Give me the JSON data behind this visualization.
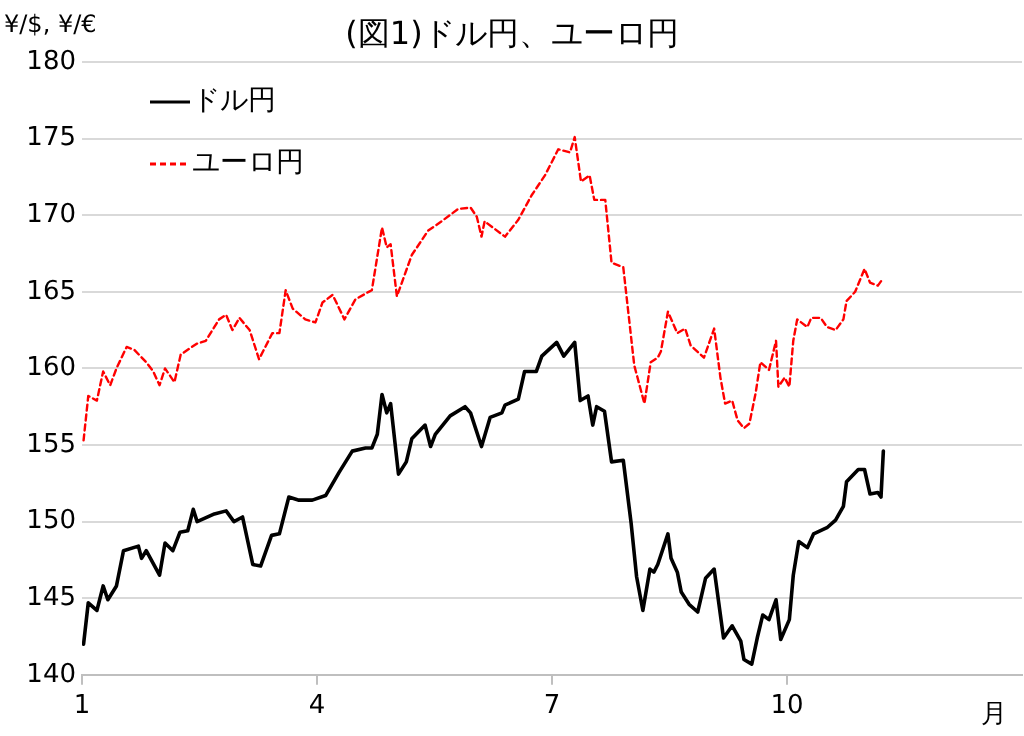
{
  "chart_data": {
    "type": "line",
    "title": "(図1)ドル円、ユーロ円",
    "ylabel": "¥/$, ¥/€",
    "xlabel": "月",
    "xlim": [
      1,
      13
    ],
    "xticks": [
      1,
      4,
      7,
      10
    ],
    "ylim": [
      140,
      180
    ],
    "yticks": [
      140,
      145,
      150,
      155,
      160,
      165,
      170,
      175,
      180
    ],
    "grid": "y",
    "legend": "top left",
    "marker": "none",
    "series": [
      {
        "name": "ドル円",
        "color": "#000000",
        "line_style": "solid",
        "x": [
          1.02,
          1.08,
          1.19,
          1.27,
          1.33,
          1.44,
          1.53,
          1.72,
          1.76,
          1.82,
          1.99,
          2.06,
          2.16,
          2.25,
          2.35,
          2.42,
          2.47,
          2.69,
          2.84,
          2.94,
          3.05,
          3.18,
          3.28,
          3.42,
          3.52,
          3.64,
          3.77,
          3.94,
          4.11,
          4.28,
          4.45,
          4.62,
          4.7,
          4.77,
          4.83,
          4.89,
          4.94,
          5.04,
          5.14,
          5.21,
          5.38,
          5.45,
          5.51,
          5.7,
          5.89,
          5.96,
          6.1,
          6.21,
          6.36,
          6.4,
          6.57,
          6.65,
          6.8,
          6.87,
          7.06,
          7.15,
          7.29,
          7.36,
          7.46,
          7.52,
          7.57,
          7.67,
          7.76,
          7.91,
          8.01,
          8.08,
          8.16,
          8.25,
          8.3,
          8.35,
          8.48,
          8.52,
          8.6,
          8.65,
          8.75,
          8.86,
          8.96,
          9.07,
          9.19,
          9.3,
          9.41,
          9.45,
          9.55,
          9.62,
          9.69,
          9.77,
          9.86,
          9.92,
          10.03,
          10.08,
          10.15,
          10.26,
          10.34,
          10.51,
          10.62,
          10.72,
          10.76,
          10.91,
          10.99,
          11.06,
          11.16,
          11.2,
          11.23
        ],
        "values": [
          142.0,
          144.7,
          144.2,
          145.8,
          144.9,
          145.8,
          148.1,
          148.4,
          147.6,
          148.1,
          146.5,
          148.6,
          148.1,
          149.3,
          149.4,
          150.8,
          150.0,
          150.5,
          150.7,
          150.0,
          150.3,
          147.2,
          147.1,
          149.1,
          149.2,
          151.6,
          151.4,
          151.4,
          151.7,
          153.2,
          154.6,
          154.8,
          154.8,
          155.7,
          158.3,
          157.1,
          157.7,
          153.1,
          153.9,
          155.4,
          156.3,
          154.9,
          155.7,
          156.9,
          157.5,
          157.1,
          154.9,
          156.8,
          157.1,
          157.6,
          158.0,
          159.8,
          159.8,
          160.8,
          161.7,
          160.8,
          161.7,
          157.9,
          158.2,
          156.3,
          157.5,
          157.2,
          153.9,
          154.0,
          149.9,
          146.4,
          144.2,
          146.9,
          146.7,
          147.2,
          149.2,
          147.6,
          146.7,
          145.4,
          144.6,
          144.1,
          146.3,
          146.9,
          142.4,
          143.2,
          142.2,
          141.0,
          140.7,
          142.4,
          143.9,
          143.6,
          144.9,
          142.3,
          143.6,
          146.5,
          148.7,
          148.3,
          149.2,
          149.6,
          150.1,
          151.0,
          152.6,
          153.4,
          153.4,
          151.8,
          151.9,
          151.6,
          154.6
        ]
      },
      {
        "name": "ユーロ円",
        "color": "#ff0000",
        "line_style": "dashed",
        "x": [
          1.02,
          1.08,
          1.19,
          1.27,
          1.36,
          1.44,
          1.57,
          1.67,
          1.82,
          1.91,
          1.99,
          2.06,
          2.18,
          2.26,
          2.46,
          2.58,
          2.75,
          2.84,
          2.92,
          3.01,
          3.14,
          3.26,
          3.43,
          3.52,
          3.6,
          3.69,
          3.85,
          3.98,
          4.07,
          4.2,
          4.35,
          4.49,
          4.66,
          4.7,
          4.83,
          4.89,
          4.94,
          5.02,
          5.21,
          5.42,
          5.59,
          5.8,
          5.96,
          6.04,
          6.1,
          6.14,
          6.4,
          6.57,
          6.74,
          6.91,
          7.08,
          7.23,
          7.29,
          7.37,
          7.48,
          7.54,
          7.68,
          7.76,
          7.91,
          8.05,
          8.18,
          8.26,
          8.35,
          8.39,
          8.48,
          8.6,
          8.7,
          8.77,
          8.94,
          9.07,
          9.15,
          9.21,
          9.3,
          9.37,
          9.45,
          9.52,
          9.6,
          9.66,
          9.77,
          9.86,
          9.89,
          9.97,
          10.03,
          10.08,
          10.13,
          10.26,
          10.31,
          10.43,
          10.51,
          10.62,
          10.72,
          10.76,
          10.87,
          10.99,
          11.06,
          11.16,
          11.23
        ],
        "values": [
          155.3,
          158.2,
          157.9,
          159.8,
          158.9,
          160.0,
          161.4,
          161.2,
          160.4,
          159.8,
          158.9,
          160.0,
          159.1,
          160.9,
          161.6,
          161.8,
          163.2,
          163.5,
          162.5,
          163.3,
          162.5,
          160.6,
          162.3,
          162.3,
          165.1,
          163.9,
          163.2,
          163.0,
          164.3,
          164.8,
          163.2,
          164.5,
          165.0,
          165.1,
          169.2,
          167.9,
          168.1,
          164.7,
          167.4,
          169.0,
          169.6,
          170.4,
          170.5,
          169.9,
          168.6,
          169.6,
          168.6,
          169.7,
          171.3,
          172.6,
          174.3,
          174.1,
          175.1,
          172.2,
          172.6,
          171.0,
          171.0,
          166.9,
          166.6,
          160.2,
          157.7,
          160.4,
          160.7,
          161.1,
          163.7,
          162.3,
          162.6,
          161.5,
          160.7,
          162.6,
          159.4,
          157.7,
          157.9,
          156.6,
          156.1,
          156.4,
          158.4,
          160.4,
          159.9,
          161.8,
          158.8,
          159.4,
          158.8,
          161.8,
          163.2,
          162.7,
          163.3,
          163.3,
          162.7,
          162.5,
          163.2,
          164.4,
          165.0,
          166.5,
          165.6,
          165.4,
          165.9
        ]
      }
    ]
  }
}
